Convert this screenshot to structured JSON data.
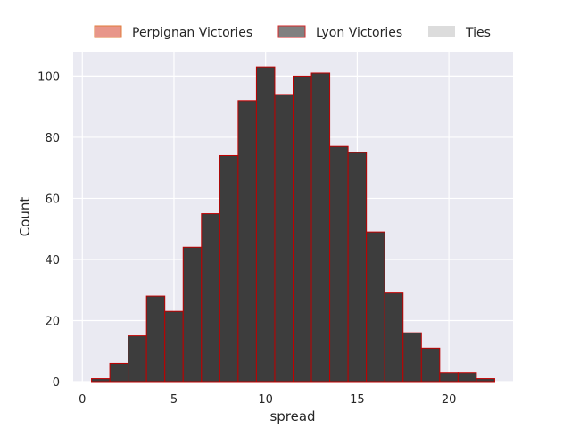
{
  "chart_data": {
    "type": "bar",
    "xlabel": "spread",
    "ylabel": "Count",
    "xlim": [
      -0.5,
      23.5
    ],
    "ylim": [
      0,
      108
    ],
    "grid": true,
    "legend_placement": "top-center",
    "xticks": [
      "0",
      "5",
      "10",
      "15",
      "20"
    ],
    "yticks": [
      "0",
      "20",
      "40",
      "60",
      "80",
      "100"
    ],
    "legend": [
      {
        "label": "Perpignan Victories",
        "color": "#e8968a",
        "edge": "#e07b39"
      },
      {
        "label": "Lyon Victories",
        "color": "#808080",
        "edge": "#d62728"
      },
      {
        "label": "Ties",
        "color": "#dcdcdc",
        "edge": "#dcdcdc"
      }
    ],
    "bin_width": 1,
    "series": [
      {
        "name": "Lyon Victories",
        "color": "#3d3d3d",
        "edge": "#c00000",
        "x": [
          1,
          2,
          3,
          4,
          5,
          6,
          7,
          8,
          9,
          10,
          11,
          12,
          13,
          14,
          15,
          16,
          17,
          18,
          19,
          20,
          21,
          22
        ],
        "values": [
          1,
          6,
          15,
          28,
          23,
          44,
          55,
          74,
          92,
          103,
          94,
          100,
          101,
          77,
          75,
          49,
          29,
          16,
          11,
          3,
          3,
          1
        ]
      }
    ]
  }
}
